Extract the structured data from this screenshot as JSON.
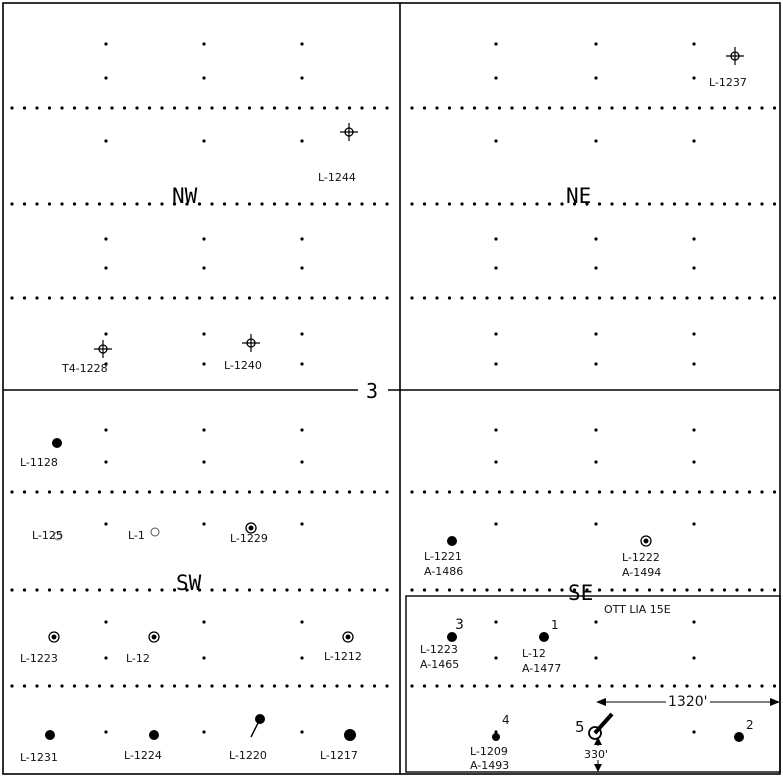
{
  "section_number": "3",
  "quadrants": {
    "nw": "NW",
    "ne": "NE",
    "sw": "SW",
    "se": "SE"
  },
  "wells": [
    {
      "id": "ne-l1237",
      "label": "L-1237",
      "symbol": "location"
    },
    {
      "id": "nw-l1244",
      "label": "L-1244",
      "symbol": "location"
    },
    {
      "id": "nw-t41228",
      "label": "T4-1228",
      "symbol": "location"
    },
    {
      "id": "nw-l1240",
      "label": "L-1240",
      "symbol": "location"
    },
    {
      "id": "sw-l1128",
      "label": "L-1128",
      "symbol": "oil-well"
    },
    {
      "id": "sw-l1225",
      "label": "L-125",
      "symbol": "abandoned"
    },
    {
      "id": "sw-l12x",
      "label": "L-1",
      "symbol": "abandoned"
    },
    {
      "id": "sw-l1229",
      "label": "L-1229",
      "symbol": "gas-oil"
    },
    {
      "id": "sw-l1223",
      "label": "L-1223",
      "symbol": "gas-oil"
    },
    {
      "id": "sw-l122",
      "label": "L-12",
      "symbol": "gas-oil"
    },
    {
      "id": "sw-l1212",
      "label": "L-1212",
      "symbol": "gas-oil"
    },
    {
      "id": "sw-l1231",
      "label": "L-1231",
      "symbol": "oil-well"
    },
    {
      "id": "sw-l1224",
      "label": "L-1224",
      "symbol": "oil-well"
    },
    {
      "id": "sw-l1220",
      "label": "L-1220",
      "symbol": "oil-well"
    },
    {
      "id": "sw-l1217",
      "label": "L-1217",
      "symbol": "oil-well"
    },
    {
      "id": "se-l1221",
      "label": "L-1221",
      "label2": "A-1486",
      "symbol": "oil-well"
    },
    {
      "id": "se-l1222",
      "label": "L-1222",
      "label2": "A-1494",
      "symbol": "gas-oil"
    },
    {
      "id": "se-l1223",
      "label": "L-1223",
      "label2": "A-1465",
      "symbol": "oil-well",
      "number": "3"
    },
    {
      "id": "se-l123",
      "label": "L-12",
      "label2": "A-1477",
      "symbol": "oil-well",
      "number": "1"
    },
    {
      "id": "se-l1209",
      "label": "L-1209",
      "label2": "A-1493",
      "symbol": "oil-well",
      "number": "4"
    },
    {
      "id": "se-w5",
      "label": "",
      "symbol": "deviated",
      "number": "5"
    },
    {
      "id": "se-w2",
      "label": "",
      "symbol": "oil-well",
      "number": "2"
    }
  ],
  "lease": {
    "name": "OTT LIA 15E",
    "dim_horizontal": "1320'",
    "dim_vertical": "330'"
  }
}
